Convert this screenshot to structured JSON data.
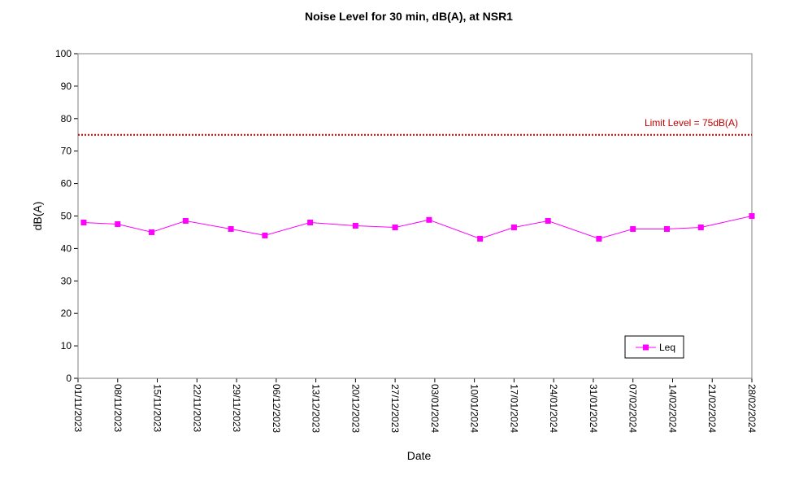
{
  "chart_data": {
    "type": "line",
    "title": "Noise Level for 30 min, dB(A), at NSR1",
    "xlabel": "Date",
    "ylabel": "dB(A)",
    "ylim": [
      0,
      100
    ],
    "yticks": [
      "0",
      "10",
      "20",
      "30",
      "40",
      "50",
      "60",
      "70",
      "80",
      "90",
      "100"
    ],
    "xticks": [
      "01/11/2023",
      "08/11/2023",
      "15/11/2023",
      "22/11/2023",
      "29/11/2023",
      "06/12/2023",
      "13/12/2023",
      "20/12/2023",
      "27/12/2023",
      "03/01/2024",
      "10/01/2024",
      "17/01/2024",
      "24/01/2024",
      "31/01/2024",
      "07/02/2024",
      "14/02/2024",
      "21/02/2024",
      "28/02/2024"
    ],
    "xlim": [
      "01/11/2023",
      "28/02/2024"
    ],
    "grid": false,
    "legend_position": "bottom-right",
    "series": [
      {
        "name": "Leq",
        "color": "#ff00ff",
        "marker": "square",
        "x": [
          "02/11/2023",
          "08/11/2023",
          "14/11/2023",
          "20/11/2023",
          "28/11/2023",
          "04/12/2023",
          "12/12/2023",
          "20/12/2023",
          "27/12/2023",
          "02/01/2024",
          "11/01/2024",
          "17/01/2024",
          "23/01/2024",
          "01/02/2024",
          "07/02/2024",
          "13/02/2024",
          "19/02/2024",
          "28/02/2024"
        ],
        "values": [
          48,
          47.5,
          45,
          48.5,
          46,
          44,
          48,
          47,
          46.5,
          48.8,
          43,
          46.5,
          48.5,
          43,
          46,
          46,
          46.5,
          50
        ]
      }
    ],
    "limit_line": {
      "value": 75,
      "label": "Limit Level  = 75dB(A)",
      "color": "#c00000"
    }
  }
}
